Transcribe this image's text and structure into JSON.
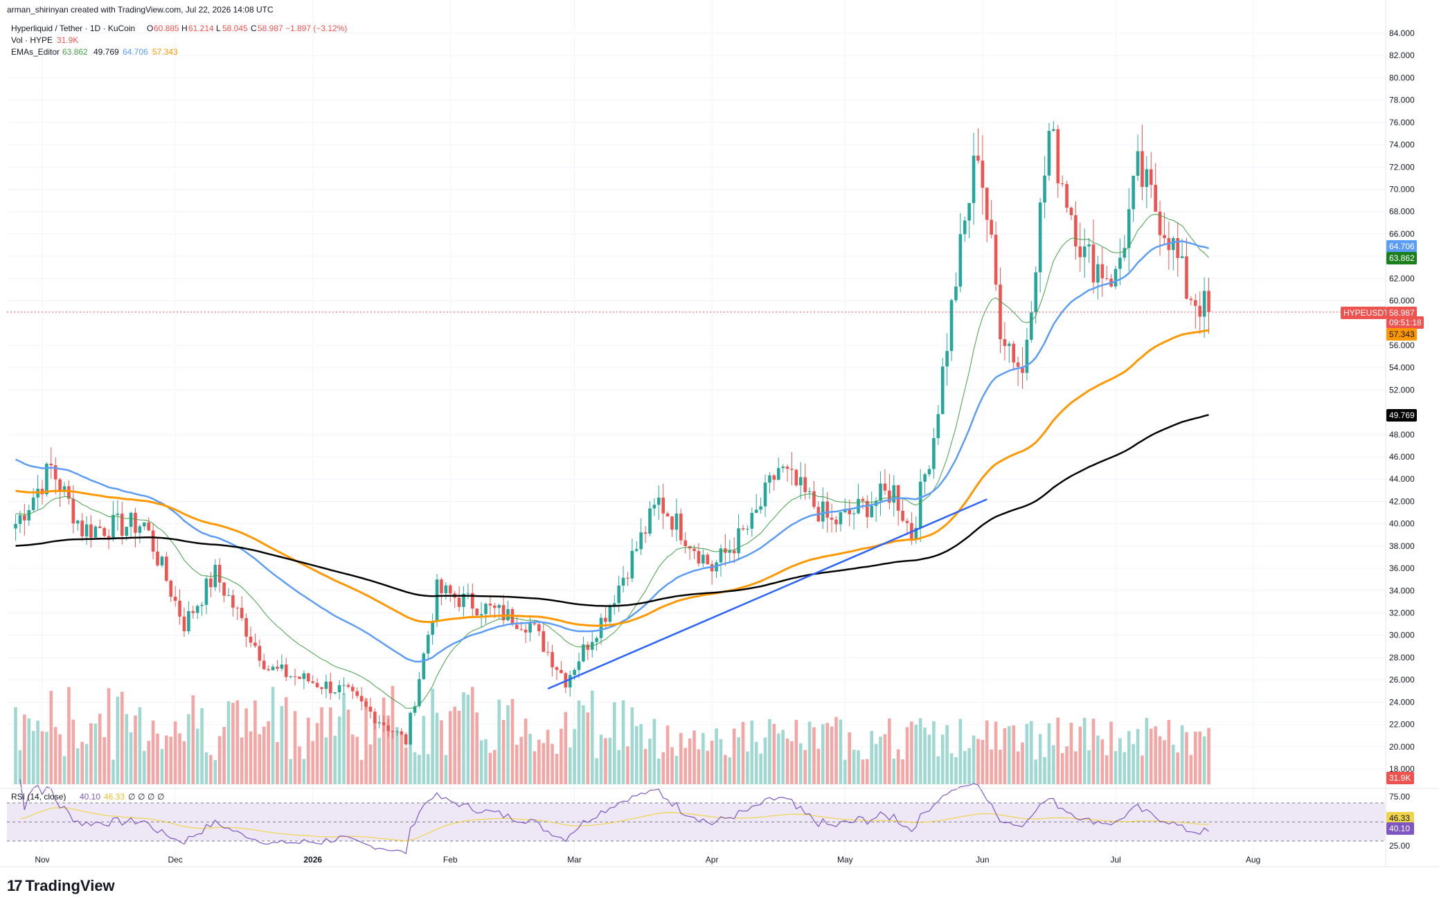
{
  "header": {
    "credit": "arman_shirinyan created with TradingView.com, Jul 22, 2026 14:08 UTC",
    "symbol": "Hyperliquid / Tether · 1D · KuCoin",
    "ohlc": {
      "o_label": "O",
      "o": "60.885",
      "h_label": "H",
      "h": "61.214",
      "l_label": "L",
      "l": "58.045",
      "c_label": "C",
      "c": "58.987",
      "chg": "−1.897 (−3.12%)"
    },
    "vol_label": "Vol · HYPE",
    "vol_value": "31.9K",
    "ema_label": "EMAs_Editor",
    "ema_values": [
      "63.862",
      "49.769",
      "64.706",
      "57.343"
    ],
    "rsi_label": "RSI (14, close)",
    "rsi_values": [
      "40.10",
      "46.33",
      "∅",
      "∅",
      "∅",
      "∅"
    ]
  },
  "colors": {
    "up": "#26a69a",
    "down": "#ef5350",
    "vol_up": "#9fd8d1",
    "vol_down": "#f4a6a5",
    "ema20": "#43a047",
    "ema50": "#5b9cf6",
    "ema100": "#ff9800",
    "ema200": "#000000",
    "trendline": "#2962ff",
    "rsi": "#7e57c2",
    "rsi_ma": "#f0d54c",
    "rsi_band": "#ede7f6"
  },
  "chart_data": [
    {
      "type": "candlestick",
      "title": "",
      "y_axis_ticks": [
        "84.000",
        "82.000",
        "80.000",
        "78.000",
        "76.000",
        "74.000",
        "72.000",
        "70.000",
        "68.000",
        "66.000",
        "64.000",
        "62.000",
        "60.000",
        "56.000",
        "54.000",
        "52.000",
        "48.000",
        "46.000",
        "44.000",
        "42.000",
        "40.000",
        "38.000",
        "36.000",
        "34.000",
        "32.000",
        "30.000",
        "28.000",
        "26.000",
        "24.000",
        "22.000",
        "20.000",
        "18.000"
      ],
      "ylim": [
        16.5,
        85.5
      ],
      "x_axis_ticks": [
        "Nov",
        "Dec",
        "2026",
        "Feb",
        "Mar",
        "Apr",
        "May",
        "Jun",
        "Jul",
        "Aug"
      ],
      "key_points": [
        {
          "date": "Oct 26",
          "close": 40.0
        },
        {
          "date": "Nov 3",
          "close": 45.0
        },
        {
          "date": "Nov 10",
          "close": 39.5
        },
        {
          "date": "Nov 24",
          "close": 40.0
        },
        {
          "date": "Dec 3",
          "close": 31.0
        },
        {
          "date": "Dec 10",
          "close": 35.5
        },
        {
          "date": "Dec 22",
          "close": 27.0
        },
        {
          "date": "Jan 8",
          "close": 25.0
        },
        {
          "date": "Jan 22",
          "close": 20.5
        },
        {
          "date": "Jan 29",
          "close": 34.0
        },
        {
          "date": "Feb 5",
          "close": 33.0
        },
        {
          "date": "Feb 19",
          "close": 31.0
        },
        {
          "date": "Feb 27",
          "close": 26.0
        },
        {
          "date": "Mar 8",
          "close": 32.0
        },
        {
          "date": "Mar 20",
          "close": 42.0
        },
        {
          "date": "Apr 1",
          "close": 36.0
        },
        {
          "date": "Apr 10",
          "close": 40.0
        },
        {
          "date": "Apr 16",
          "close": 45.0
        },
        {
          "date": "Apr 28",
          "close": 40.0
        },
        {
          "date": "May 12",
          "close": 43.0
        },
        {
          "date": "May 16",
          "close": 39.0
        },
        {
          "date": "May 21",
          "close": 48.0
        },
        {
          "date": "May 26",
          "close": 62.0
        },
        {
          "date": "May 31",
          "close": 74.0
        },
        {
          "date": "Jun 5",
          "close": 58.0
        },
        {
          "date": "Jun 10",
          "close": 53.5
        },
        {
          "date": "Jun 16",
          "close": 75.0
        },
        {
          "date": "Jun 24",
          "close": 64.0
        },
        {
          "date": "Jul 1",
          "close": 62.0
        },
        {
          "date": "Jul 6",
          "close": 71.5
        },
        {
          "date": "Jul 13",
          "close": 66.0
        },
        {
          "date": "Jul 17",
          "close": 61.0
        },
        {
          "date": "Jul 22",
          "close": 58.987
        }
      ],
      "price_tags": {
        "ema50": "64.706",
        "ema20": "63.862",
        "symbol": "HYPEUSDT",
        "last_price": "58.987",
        "countdown": "09:51:18",
        "ema100": "57.343",
        "ema200": "49.769",
        "volume": "31.9K"
      },
      "ema_final": {
        "ema20": 63.862,
        "ema50": 64.706,
        "ema100": 57.343,
        "ema200": 49.769
      },
      "trendline": {
        "from": {
          "date": "Feb 23",
          "value": 25.2
        },
        "to": {
          "date": "Jun 2",
          "value": 42.2
        }
      }
    },
    {
      "type": "line",
      "title": "RSI (14, close)",
      "y_axis_ticks": [
        "75.00",
        "25.00"
      ],
      "levels": [
        70,
        50,
        30
      ],
      "ylim": [
        20,
        80
      ],
      "rsi_last": 40.1,
      "rsi_ma_last": 46.33,
      "rsi_tags": {
        "rsi_ma": "46.33",
        "rsi": "40.10"
      }
    }
  ],
  "branding": {
    "logo_mark": "17",
    "name": "TradingView"
  }
}
